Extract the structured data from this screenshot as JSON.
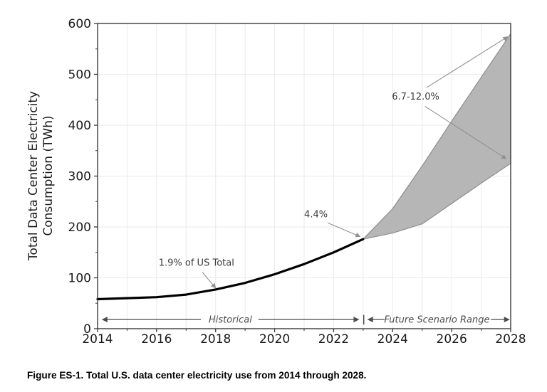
{
  "figure": {
    "caption": "Figure ES-1. Total U.S. data center electricity use from 2014 through 2028."
  },
  "chart_data": {
    "type": "line",
    "title": "",
    "xlabel": "",
    "ylabel": "Total Data Center Electricity Consumption (TWh)",
    "ylabel_lines": [
      "Total Data Center Electricity",
      "Consumption (TWh)"
    ],
    "xlim": [
      2014,
      2028
    ],
    "ylim": [
      0,
      600
    ],
    "x_ticks": [
      2014,
      2016,
      2018,
      2020,
      2022,
      2024,
      2026,
      2028
    ],
    "x_minor_ticks": [
      2015,
      2017,
      2019,
      2021,
      2023,
      2025,
      2027
    ],
    "y_ticks": [
      0,
      100,
      200,
      300,
      400,
      500,
      600
    ],
    "y_minor_ticks": [
      50,
      150,
      250,
      350,
      450,
      550
    ],
    "grid": {
      "vertical": "every year",
      "horizontal": "every 100 TWh"
    },
    "series": [
      {
        "name": "Historical",
        "type": "line",
        "x": [
          2014,
          2015,
          2016,
          2017,
          2018,
          2019,
          2020,
          2021,
          2022,
          2023
        ],
        "y": [
          58,
          60,
          62,
          67,
          77,
          90,
          107,
          127,
          150,
          176
        ]
      },
      {
        "name": "Future Scenario Range",
        "type": "band",
        "x": [
          2023,
          2024,
          2025,
          2026,
          2027,
          2028
        ],
        "upper": [
          176,
          236,
          320,
          408,
          494,
          580
        ],
        "lower": [
          176,
          188,
          206,
          246,
          286,
          325
        ]
      }
    ],
    "annotations": [
      {
        "text": "1.9% of US Total",
        "x": 2017.35,
        "y": 130,
        "arrows": [
          [
            2017.55,
            111,
            2018.0,
            80
          ]
        ]
      },
      {
        "text": "4.4%",
        "x": 2021.4,
        "y": 225,
        "arrows": [
          [
            2021.8,
            208,
            2022.9,
            181
          ]
        ]
      },
      {
        "text": "6.7-12.0%",
        "x": 2024.78,
        "y": 457,
        "arrows": [
          [
            2025.15,
            474,
            2027.9,
            574
          ],
          [
            2025.1,
            437,
            2027.85,
            334
          ]
        ]
      }
    ],
    "span_labels": [
      {
        "label": "Historical",
        "y": 18,
        "text_x": 2018.5,
        "arrows": [
          [
            2017.5,
            2014.16
          ],
          [
            2019.45,
            2022.85
          ]
        ]
      },
      {
        "label": "Future Scenario Range",
        "y": 18,
        "text_x": 2025.5,
        "arrows": [
          [
            2023.72,
            2023.16
          ],
          [
            2027.33,
            2027.95
          ]
        ]
      }
    ],
    "divider": {
      "x": 2023.02,
      "y1": 8,
      "y2": 27
    }
  },
  "colors": {
    "line": "#000000",
    "band_fill": "#b6b6b6",
    "band_edge": "#8d8d8d",
    "grid": "#eaeaea",
    "spine": "#3a3a3a",
    "tick_text": "#1a1a1a",
    "ann_text": "#3a3a3a",
    "ann_arrow": "#919191",
    "span": "#4d4d4d"
  }
}
